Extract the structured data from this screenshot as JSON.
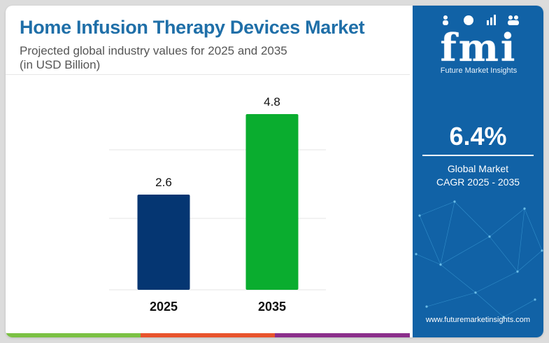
{
  "header": {
    "title": "Home Infusion Therapy Devices Market",
    "subtitle_line1": "Projected global industry values for 2025 and 2035",
    "subtitle_line2": "(in USD Billion)"
  },
  "chart_data": {
    "type": "bar",
    "categories": [
      "2025",
      "2035"
    ],
    "values": [
      2.6,
      4.8
    ],
    "value_labels": [
      "2.6",
      "4.8"
    ],
    "bar_colors": [
      "#053672",
      "#0aad2f"
    ],
    "title": "Home Infusion Therapy Devices Market",
    "xlabel": "",
    "ylabel": "",
    "ylim": [
      0,
      4.8
    ],
    "grid": true,
    "legend": "none"
  },
  "panel": {
    "brand": "fmi",
    "tagline": "Future Market Insights",
    "cagr_value": "6.4%",
    "cagr_label_line1": "Global Market",
    "cagr_label_line2": "CAGR 2025 - 2035",
    "website": "www.futuremarketinsights.com",
    "logo_icons": [
      "person-icon",
      "globe-icon",
      "chart-icon",
      "people-icon"
    ]
  },
  "colors": {
    "title": "#1f6fa8",
    "panel_background": "#1162a6",
    "footer_stripe": [
      "#7bc143",
      "#e8532c",
      "#8b2f8b"
    ]
  }
}
